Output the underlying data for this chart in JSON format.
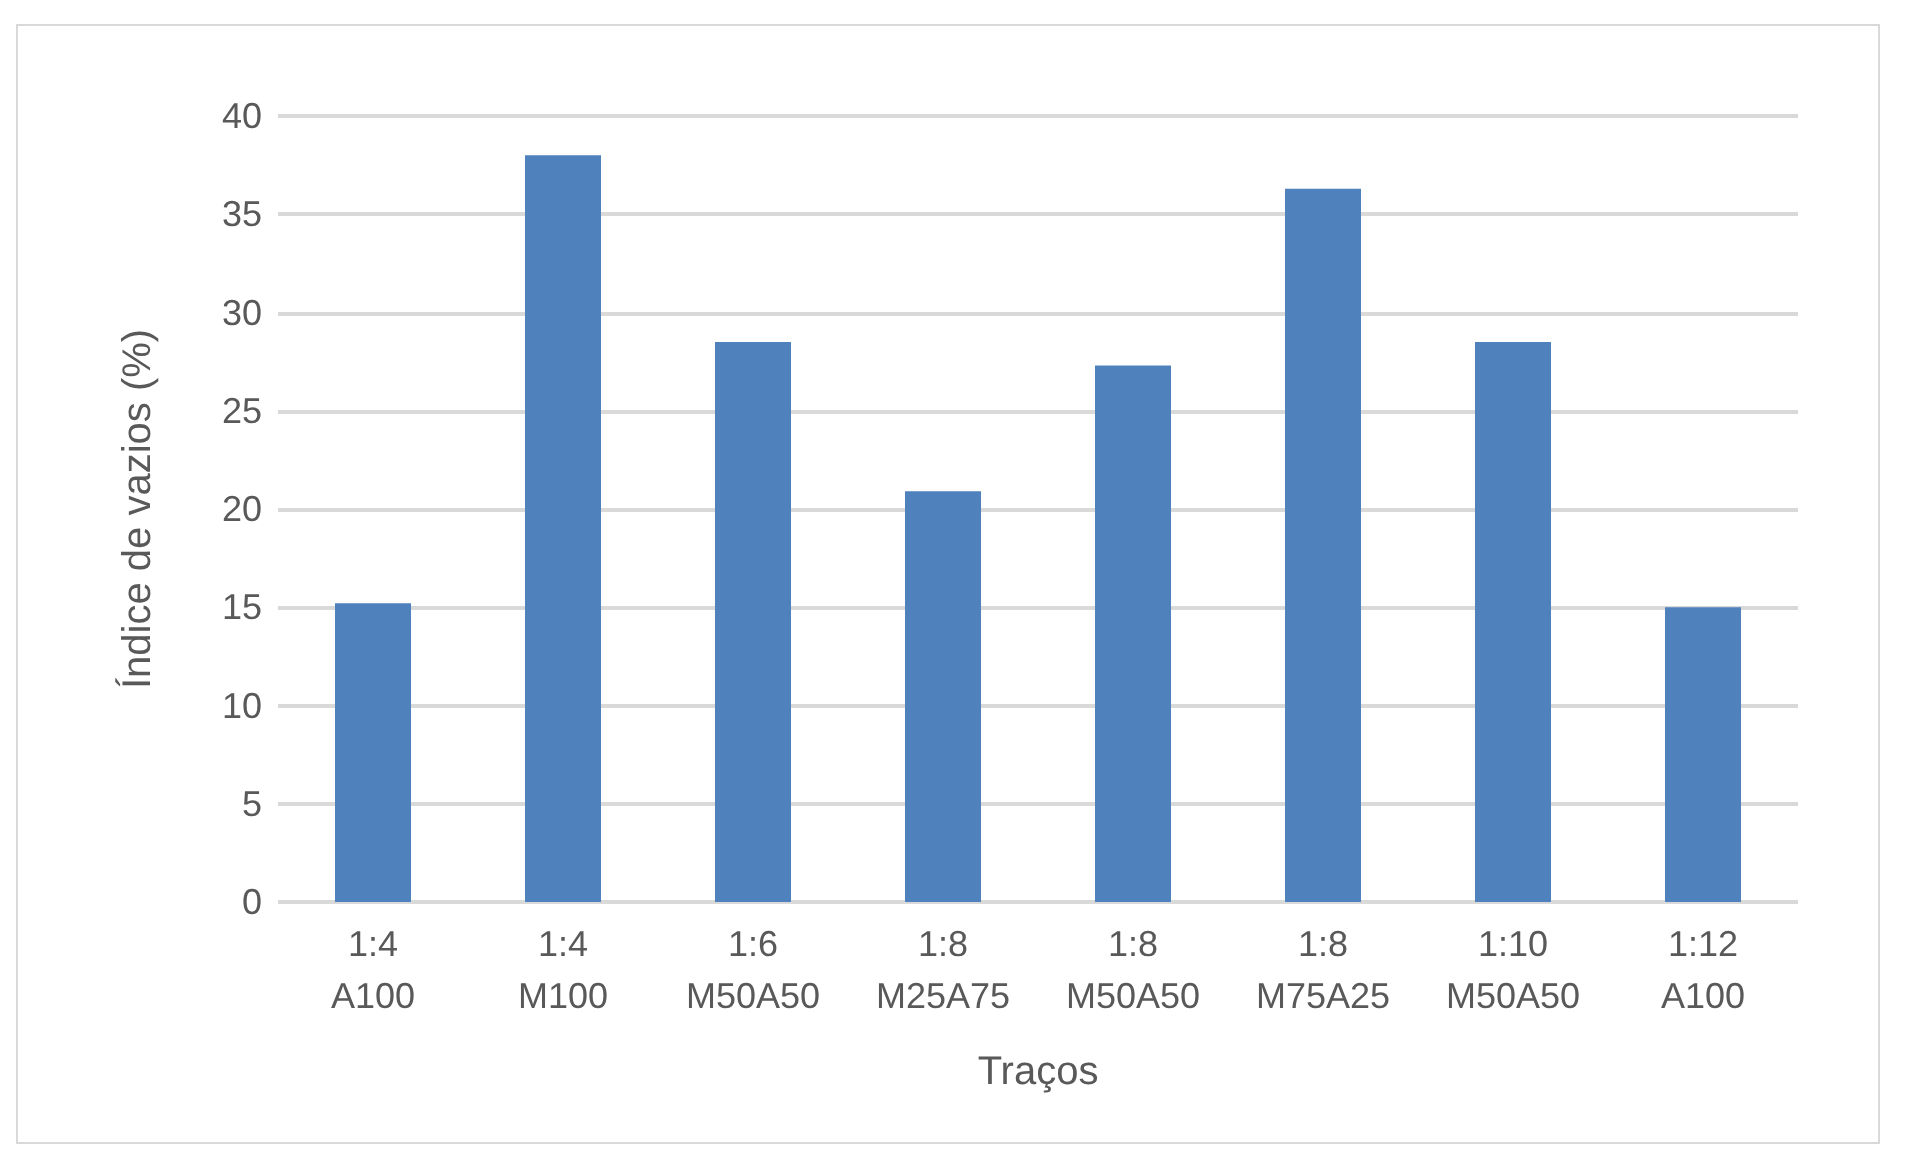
{
  "chart_data": {
    "type": "bar",
    "xlabel": "Traços",
    "ylabel": "Índice de vazios (%)",
    "categories": [
      "1:4\nA100",
      "1:4\nM100",
      "1:6\nM50A50",
      "1:8\nM25A75",
      "1:8\nM50A50",
      "1:8\nM75A25",
      "1:10\nM50A50",
      "1:12\nA100"
    ],
    "values": [
      15.2,
      38.0,
      28.5,
      20.9,
      27.3,
      36.3,
      28.5,
      15.0
    ],
    "color": "#4f81bd",
    "ylim": [
      0,
      40
    ],
    "yticks": [
      0,
      5,
      10,
      15,
      20,
      25,
      30,
      35,
      40
    ],
    "grid": "y"
  }
}
